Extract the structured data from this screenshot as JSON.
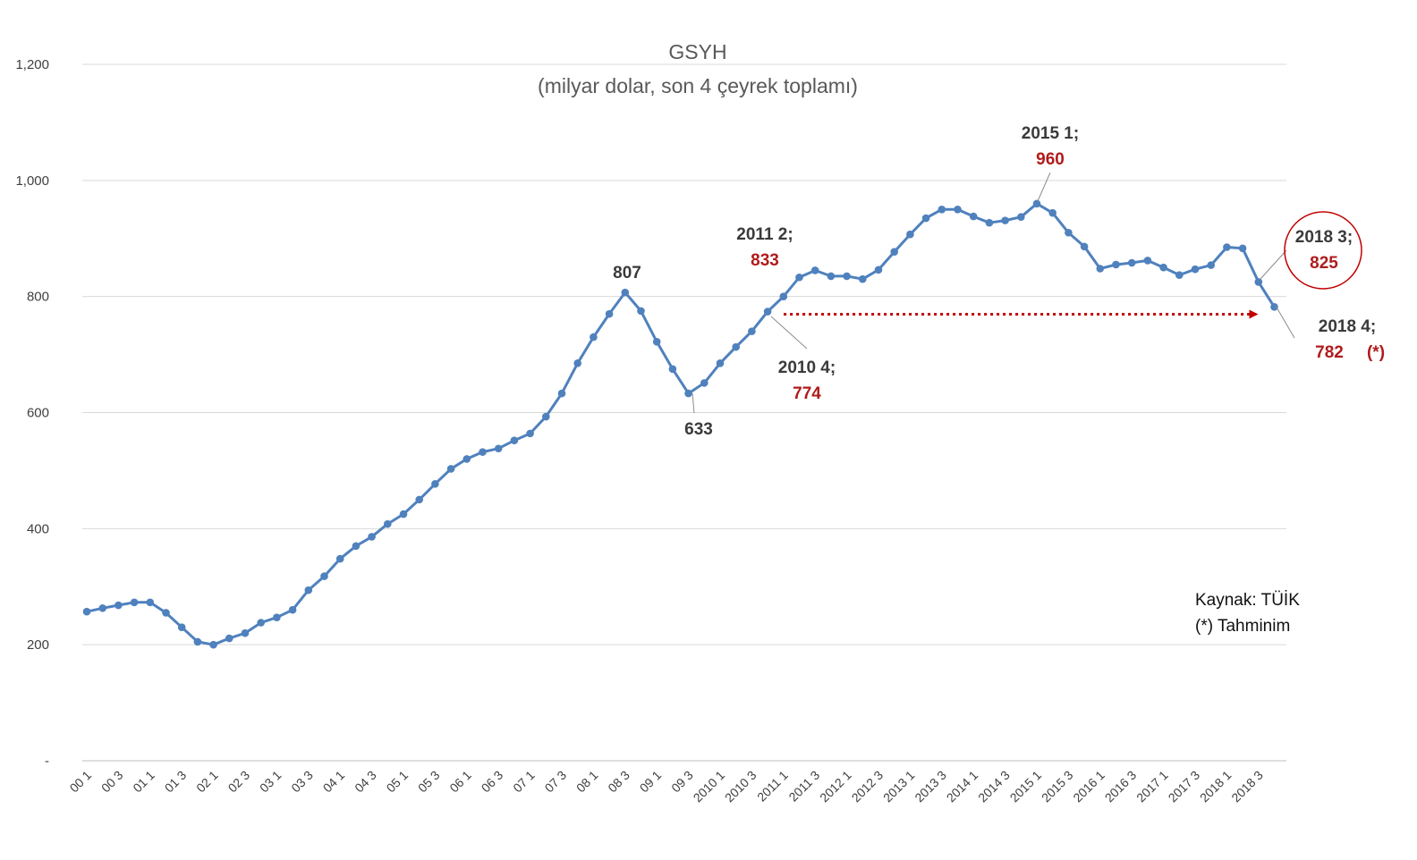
{
  "chart_data": {
    "type": "line",
    "title": "GSYH",
    "subtitle": "(milyar dolar, son 4 çeyrek toplamı)",
    "xlabel": "",
    "ylabel": "",
    "ylim": [
      0,
      1200
    ],
    "yticks": [
      {
        "value": 0,
        "label": "-"
      },
      {
        "value": 200,
        "label": "200"
      },
      {
        "value": 400,
        "label": "400"
      },
      {
        "value": 600,
        "label": "600"
      },
      {
        "value": 800,
        "label": "800"
      },
      {
        "value": 1000,
        "label": "1,000"
      },
      {
        "value": 1200,
        "label": "1,200"
      }
    ],
    "grid": true,
    "legend": "none",
    "line_color": "#4f81bd",
    "categories": [
      "00 1",
      "00 2",
      "00 3",
      "00 4",
      "01 1",
      "01 2",
      "01 3",
      "01 4",
      "02 1",
      "02 2",
      "02 3",
      "02 4",
      "03 1",
      "03 2",
      "03 3",
      "03 4",
      "04 1",
      "04 2",
      "04 3",
      "04 4",
      "05 1",
      "05 2",
      "05 3",
      "05 4",
      "06 1",
      "06 2",
      "06 3",
      "06 4",
      "07 1",
      "07 2",
      "07 3",
      "07 4",
      "08 1",
      "08 2",
      "08 3",
      "08 4",
      "09 1",
      "09 2",
      "09 3",
      "09 4",
      "2010 1",
      "2010 2",
      "2010 3",
      "2010 4",
      "2011 1",
      "2011 2",
      "2011 3",
      "2011 4",
      "2012 1",
      "2012 2",
      "2012 3",
      "2012 4",
      "2013 1",
      "2013 2",
      "2013 3",
      "2013 4",
      "2014 1",
      "2014 2",
      "2014 3",
      "2014 4",
      "2015 1",
      "2015 2",
      "2015 3",
      "2015 4",
      "2016 1",
      "2016 2",
      "2016 3",
      "2016 4",
      "2017 1",
      "2017 2",
      "2017 3",
      "2017 4",
      "2018 1",
      "2018 2",
      "2018 3",
      "2018 4"
    ],
    "x_tick_labels": [
      "00 1",
      "00 3",
      "01 1",
      "01 3",
      "02 1",
      "02 3",
      "03 1",
      "03 3",
      "04 1",
      "04 3",
      "05 1",
      "05 3",
      "06 1",
      "06 3",
      "07 1",
      "07 3",
      "08 1",
      "08 3",
      "09 1",
      "09 3",
      "2010 1",
      "2010 3",
      "2011 1",
      "2011 3",
      "2012 1",
      "2012 3",
      "2013 1",
      "2013 3",
      "2014 1",
      "2014 3",
      "2015 1",
      "2015 3",
      "2016 1",
      "2016 3",
      "2017 1",
      "2017 3",
      "2018 1",
      "2018 3"
    ],
    "values": [
      257,
      263,
      268,
      273,
      273,
      255,
      230,
      205,
      200,
      211,
      220,
      238,
      247,
      260,
      294,
      318,
      348,
      370,
      386,
      408,
      425,
      450,
      477,
      503,
      520,
      532,
      538,
      552,
      564,
      593,
      633,
      685,
      730,
      770,
      807,
      775,
      722,
      675,
      633,
      651,
      685,
      713,
      740,
      774,
      800,
      833,
      845,
      835,
      835,
      830,
      846,
      877,
      907,
      935,
      950,
      950,
      938,
      927,
      931,
      937,
      960,
      944,
      910,
      886,
      848,
      855,
      858,
      862,
      850,
      837,
      847,
      854,
      885,
      883,
      825,
      782
    ],
    "annotations": [
      {
        "category": "08 3",
        "label": "807",
        "value_label": ""
      },
      {
        "category": "09 3",
        "label": "633",
        "value_label": ""
      },
      {
        "category": "2010 4",
        "label": "2010 4;",
        "value_label": "774"
      },
      {
        "category": "2011 2",
        "label": "2011 2;",
        "value_label": "833"
      },
      {
        "category": "2015 1",
        "label": "2015 1;",
        "value_label": "960"
      },
      {
        "category": "2018 3",
        "label": "2018 3;",
        "value_label": "825"
      },
      {
        "category": "2018 4",
        "label": "2018 4;",
        "value_label": "782",
        "note": "(*)"
      }
    ],
    "arrow": {
      "from": "2010 4",
      "to": "2018 4",
      "style": "dotted",
      "color": "#c00000"
    },
    "source_lines": [
      "Kaynak: TÜİK",
      "(*) Tahminim"
    ]
  }
}
